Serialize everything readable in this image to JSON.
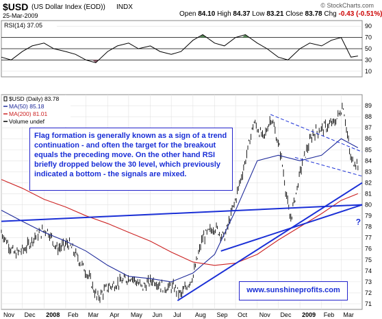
{
  "header": {
    "symbol": "$USD",
    "name": "(US Dollar Index (EOD))",
    "exchange": "INDX",
    "date": "25-Mar-2009",
    "copyright": "© StockCharts.com",
    "open_label": "Open",
    "open": "84.10",
    "high_label": "High",
    "high": "84.37",
    "low_label": "Low",
    "low": "83.21",
    "close_label": "Close",
    "close": "83.78",
    "chg_label": "Chg",
    "chg": "-0.43 (-0.51%)"
  },
  "annotation": "Flag formation is generally known as a sign of a trend continuation - and often the target for the breakout equals the preceding move. On the other hand RSI briefly dropped below the 30 level, which previously indicated a bottom - the signals are mixed.",
  "website": "www.sunshineprofits.com",
  "question_mark": "?",
  "chart_data": [
    {
      "type": "line",
      "panel": "rsi",
      "legend": "RSI(14) 37.05",
      "ylim": [
        0,
        100
      ],
      "yticks": [
        10,
        30,
        50,
        70,
        90
      ],
      "reference_lines": [
        30,
        50,
        70
      ],
      "colors": {
        "line": "#000000",
        "overbought_fill": "#5a8a5a",
        "oversold_fill": "#8a5a6a"
      },
      "x": [
        "2007-11-01",
        "2007-11-15",
        "2007-12-01",
        "2007-12-15",
        "2008-01-01",
        "2008-01-15",
        "2008-02-01",
        "2008-02-15",
        "2008-03-01",
        "2008-03-15",
        "2008-04-01",
        "2008-04-15",
        "2008-05-01",
        "2008-05-15",
        "2008-06-01",
        "2008-06-15",
        "2008-07-01",
        "2008-07-15",
        "2008-08-01",
        "2008-08-15",
        "2008-09-01",
        "2008-09-15",
        "2008-10-01",
        "2008-10-15",
        "2008-11-01",
        "2008-11-15",
        "2008-12-01",
        "2008-12-15",
        "2009-01-01",
        "2009-01-15",
        "2009-02-01",
        "2009-02-15",
        "2009-03-01",
        "2009-03-15",
        "2009-03-25"
      ],
      "values": [
        35,
        30,
        45,
        55,
        60,
        50,
        45,
        40,
        30,
        25,
        45,
        55,
        60,
        50,
        55,
        45,
        40,
        45,
        65,
        75,
        60,
        55,
        70,
        75,
        60,
        50,
        35,
        30,
        50,
        60,
        55,
        65,
        70,
        35,
        37
      ]
    },
    {
      "type": "line",
      "panel": "price",
      "legend": [
        "$USD (Daily) 83.78",
        "MA(50) 85.18",
        "MA(200) 81.01",
        "Volume undef"
      ],
      "ylim": [
        70.5,
        90
      ],
      "yticks": [
        71,
        72,
        73,
        74,
        75,
        76,
        77,
        78,
        79,
        80,
        81,
        82,
        83,
        84,
        85,
        86,
        87,
        88,
        89
      ],
      "xticks": [
        "Nov",
        "Dec",
        "2008",
        "Feb",
        "Mar",
        "Apr",
        "May",
        "Jun",
        "Jul",
        "Aug",
        "Sep",
        "Oct",
        "Nov",
        "Dec",
        "2009",
        "Feb",
        "Mar"
      ],
      "x_start": "2007-11-01",
      "colors": {
        "price": "#000000",
        "ma50": "#1e2a9a",
        "ma200": "#cc2222",
        "trend": "#1a2fd6"
      },
      "series": [
        {
          "name": "$USD (Daily) 83.78",
          "x": [
            "2007-11-01",
            "2007-11-20",
            "2007-12-05",
            "2007-12-20",
            "2008-01-05",
            "2008-01-20",
            "2008-02-05",
            "2008-02-20",
            "2008-03-05",
            "2008-03-17",
            "2008-04-01",
            "2008-04-20",
            "2008-05-05",
            "2008-05-20",
            "2008-06-05",
            "2008-06-20",
            "2008-07-05",
            "2008-07-15",
            "2008-08-01",
            "2008-08-15",
            "2008-09-01",
            "2008-09-15",
            "2008-10-01",
            "2008-10-15",
            "2008-10-27",
            "2008-11-10",
            "2008-11-21",
            "2008-12-05",
            "2008-12-18",
            "2009-01-05",
            "2009-01-20",
            "2009-02-05",
            "2009-02-20",
            "2009-03-04",
            "2009-03-15",
            "2009-03-25"
          ],
          "values": [
            77.5,
            75.5,
            76.0,
            77.2,
            77.8,
            76.0,
            76.5,
            75.0,
            73.5,
            71.5,
            72.5,
            73.0,
            73.5,
            72.5,
            73.2,
            72.5,
            72.5,
            71.8,
            73.5,
            77.0,
            78.0,
            77.0,
            80.5,
            84.0,
            87.5,
            86.0,
            88.0,
            84.5,
            78.5,
            84.0,
            86.5,
            87.0,
            87.5,
            89.0,
            84.0,
            83.78
          ]
        },
        {
          "name": "MA(50) 85.18",
          "x": [
            "2007-11-01",
            "2007-12-01",
            "2008-01-01",
            "2008-02-01",
            "2008-03-01",
            "2008-04-01",
            "2008-05-01",
            "2008-06-01",
            "2008-07-01",
            "2008-08-01",
            "2008-09-01",
            "2008-10-01",
            "2008-11-01",
            "2008-12-01",
            "2009-01-01",
            "2009-02-01",
            "2009-03-01",
            "2009-03-25"
          ],
          "values": [
            79.5,
            78.5,
            77.5,
            76.7,
            75.8,
            74.5,
            73.5,
            73.3,
            73.0,
            73.8,
            75.5,
            79.5,
            84.0,
            84.5,
            84.0,
            84.5,
            86.0,
            85.18
          ]
        },
        {
          "name": "MA(200) 81.01",
          "x": [
            "2007-11-01",
            "2007-12-01",
            "2008-01-01",
            "2008-02-01",
            "2008-03-01",
            "2008-04-01",
            "2008-05-01",
            "2008-06-01",
            "2008-07-01",
            "2008-08-01",
            "2008-09-01",
            "2008-10-01",
            "2008-11-01",
            "2008-12-01",
            "2009-01-01",
            "2009-02-01",
            "2009-03-01",
            "2009-03-25"
          ],
          "values": [
            82.3,
            81.5,
            80.5,
            79.8,
            79.0,
            78.3,
            77.5,
            76.7,
            75.7,
            74.8,
            74.5,
            74.7,
            75.5,
            76.8,
            78.0,
            79.2,
            80.4,
            81.01
          ]
        }
      ],
      "trendlines": [
        {
          "style": "solid",
          "from": [
            "2008-07-10",
            71.3
          ],
          "to": [
            "2009-03-31",
            82.0
          ]
        },
        {
          "style": "solid",
          "from": [
            "2008-09-10",
            75.8
          ],
          "to": [
            "2009-03-31",
            80.0
          ]
        },
        {
          "style": "solid",
          "from": [
            "2007-11-01",
            78.5
          ],
          "to": [
            "2009-03-31",
            80.0
          ]
        },
        {
          "style": "dashed",
          "from": [
            "2008-11-20",
            88.2
          ],
          "to": [
            "2009-03-31",
            84.8
          ]
        },
        {
          "style": "dashed",
          "from": [
            "2008-12-25",
            84.3
          ],
          "to": [
            "2009-03-31",
            82.6
          ]
        }
      ]
    }
  ]
}
